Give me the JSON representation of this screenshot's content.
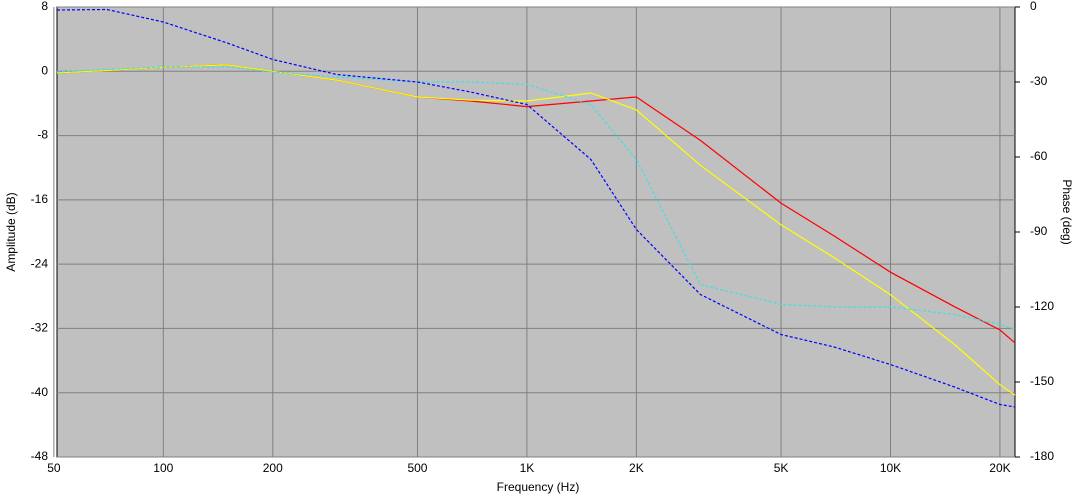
{
  "chart_data": {
    "type": "line",
    "x_label": "Frequency (Hz)",
    "y_label": "Amplitude (dB)",
    "y2_label": "Phase (deg)",
    "log_x": true,
    "grid": true,
    "x": [
      51,
      70,
      100,
      150,
      200,
      300,
      500,
      700,
      1000,
      1500,
      2000,
      3000,
      5000,
      7000,
      10000,
      15000,
      20000,
      22000
    ],
    "series": [
      {
        "color": "#ff0000",
        "dash": false,
        "values": [
          -0.2,
          0.1,
          0.5,
          0.8,
          0,
          -1.1,
          -3.2,
          -3.7,
          -4.4,
          -3.7,
          -3.2,
          -8.6,
          -16.4,
          -20.5,
          -25,
          -29.3,
          -32.2,
          -33.8
        ]
      },
      {
        "color": "#ffff00",
        "dash": false,
        "values": [
          -0.2,
          0.1,
          0.5,
          0.8,
          0,
          -1.1,
          -3.2,
          -3.6,
          -3.7,
          -2.7,
          -4.8,
          -11.7,
          -19.1,
          -23.2,
          -27.8,
          -34,
          -39,
          -40.3
        ]
      },
      {
        "color": "#40e0e0",
        "dash": true,
        "axis": "y2",
        "values": [
          -26,
          -25,
          -24,
          -24,
          -26,
          -28,
          -30,
          -30,
          -31,
          -39,
          -61,
          -111,
          -119,
          -120,
          -120,
          -123,
          -127,
          -129
        ]
      },
      {
        "color": "#0000ff",
        "dash": true,
        "axis": "y2",
        "values": [
          -1.2,
          -1,
          -6,
          -14.4,
          -21,
          -27,
          -30,
          -34,
          -39,
          -61,
          -89,
          -115,
          -131,
          -136,
          -143,
          -152,
          -159,
          -160
        ]
      }
    ],
    "xlim": [
      51,
      22000
    ],
    "xticks": [
      50,
      100,
      200,
      500,
      {
        "value": 1000,
        "label": "1K"
      },
      {
        "value": 2000,
        "label": "2K"
      },
      {
        "value": 5000,
        "label": "5K"
      },
      {
        "value": 10000,
        "label": "10K"
      },
      {
        "value": 20000,
        "label": "20K"
      }
    ],
    "ylim": [
      -48,
      8
    ],
    "yticks": [
      -48,
      -40,
      -32,
      -24,
      -16,
      -8,
      0,
      8
    ],
    "y2lim": [
      -180,
      0
    ],
    "y2ticks": [
      -180,
      -150,
      -120,
      -90,
      -60,
      -30,
      0
    ]
  }
}
